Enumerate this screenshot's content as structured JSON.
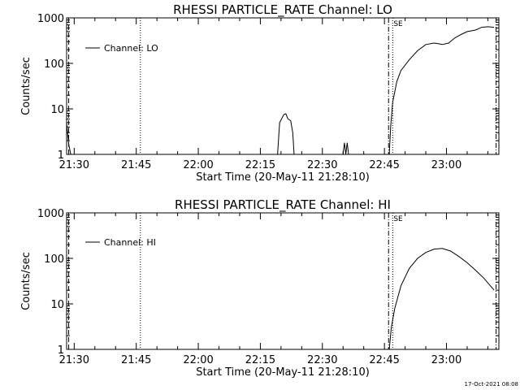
{
  "footer": {
    "timestamp": "17-Oct-2021 08:08"
  },
  "chart_data": [
    {
      "type": "line",
      "title": "RHESSI PARTICLE_RATE Channel: LO",
      "xlabel": "Start Time (20-May-11 21:28:10)",
      "ylabel": "Counts/sec",
      "y_scale": "log",
      "ylim": [
        1,
        1000
      ],
      "xlim": [
        "21:28:10",
        "23:12:40"
      ],
      "x_ticks": [
        "21:30",
        "21:45",
        "22:00",
        "22:15",
        "22:30",
        "22:45",
        "23:00"
      ],
      "y_ticks": [
        "1",
        "10",
        "100",
        "1000"
      ],
      "grid": false,
      "legend": {
        "position": "top-left",
        "entries": [
          "Channel: LO"
        ]
      },
      "markers": [
        {
          "time": "21:28:40",
          "style": "dashed",
          "label": ""
        },
        {
          "time": "21:46:00",
          "style": "dotted",
          "label": ""
        },
        {
          "time": "22:46:00",
          "style": "dash-dot",
          "label": ""
        },
        {
          "time": "22:47:00",
          "style": "dotted",
          "label": "SE"
        },
        {
          "time": "23:12:00",
          "style": "dash-dot",
          "label": ""
        }
      ],
      "series": [
        {
          "name": "Channel: LO",
          "segments": [
            [
              [
                "21:28:10",
                5
              ],
              [
                "21:28:40",
                1.7
              ],
              [
                "21:29:10",
                1
              ]
            ],
            [
              [
                "22:19:10",
                1
              ],
              [
                "22:19:40",
                5
              ],
              [
                "22:20:40",
                7.5
              ],
              [
                "22:21:10",
                7.8
              ],
              [
                "22:21:40",
                6
              ],
              [
                "22:22:20",
                5.5
              ],
              [
                "22:22:50",
                3
              ],
              [
                "22:23:10",
                1
              ]
            ],
            [
              [
                "22:35:00",
                1
              ],
              [
                "22:35:20",
                1.8
              ],
              [
                "22:35:40",
                1
              ],
              [
                "22:36:00",
                1.8
              ],
              [
                "22:36:20",
                1
              ]
            ],
            [
              [
                "22:46:10",
                1
              ],
              [
                "22:46:30",
                4
              ],
              [
                "22:47:00",
                14
              ],
              [
                "22:48:00",
                40
              ],
              [
                "22:49:00",
                70
              ],
              [
                "22:51:00",
                120
              ],
              [
                "22:53:00",
                190
              ],
              [
                "22:55:00",
                260
              ],
              [
                "22:57:00",
                280
              ],
              [
                "22:58:00",
                270
              ],
              [
                "22:59:00",
                260
              ],
              [
                "23:00:30",
                280
              ],
              [
                "23:02:00",
                360
              ],
              [
                "23:03:30",
                430
              ],
              [
                "23:05:00",
                500
              ],
              [
                "23:07:00",
                540
              ],
              [
                "23:08:30",
                620
              ],
              [
                "23:10:00",
                640
              ],
              [
                "23:11:30",
                620
              ]
            ]
          ]
        }
      ]
    },
    {
      "type": "line",
      "title": "RHESSI PARTICLE_RATE Channel: HI",
      "xlabel": "Start Time (20-May-11 21:28:10)",
      "ylabel": "Counts/sec",
      "y_scale": "log",
      "ylim": [
        1,
        1000
      ],
      "xlim": [
        "21:28:10",
        "23:12:40"
      ],
      "x_ticks": [
        "21:30",
        "21:45",
        "22:00",
        "22:15",
        "22:30",
        "22:45",
        "23:00"
      ],
      "y_ticks": [
        "1",
        "10",
        "100",
        "1000"
      ],
      "grid": false,
      "legend": {
        "position": "top-left",
        "entries": [
          "Channel: HI"
        ]
      },
      "markers": [
        {
          "time": "21:28:40",
          "style": "dashed",
          "label": ""
        },
        {
          "time": "21:46:00",
          "style": "dotted",
          "label": ""
        },
        {
          "time": "22:46:00",
          "style": "dash-dot",
          "label": ""
        },
        {
          "time": "22:47:00",
          "style": "dotted",
          "label": "SE"
        },
        {
          "time": "23:12:00",
          "style": "dash-dot",
          "label": ""
        }
      ],
      "series": [
        {
          "name": "Channel: HI",
          "segments": [
            [
              [
                "22:46:10",
                1
              ],
              [
                "22:46:40",
                3
              ],
              [
                "22:47:30",
                8
              ],
              [
                "22:49:00",
                25
              ],
              [
                "22:51:00",
                60
              ],
              [
                "22:53:00",
                100
              ],
              [
                "22:55:00",
                135
              ],
              [
                "22:57:00",
                160
              ],
              [
                "22:59:00",
                165
              ],
              [
                "23:01:00",
                145
              ],
              [
                "23:03:00",
                110
              ],
              [
                "23:05:00",
                80
              ],
              [
                "23:07:00",
                55
              ],
              [
                "23:09:00",
                37
              ],
              [
                "23:11:30",
                20
              ]
            ]
          ]
        }
      ]
    }
  ]
}
